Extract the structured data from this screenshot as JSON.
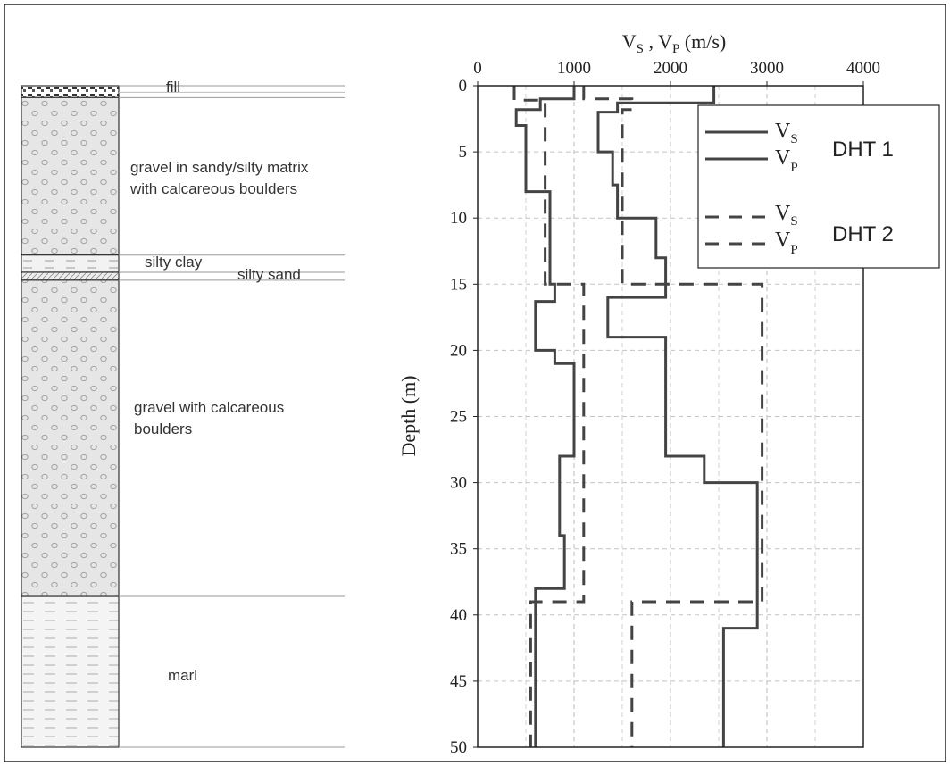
{
  "strata": {
    "labels": {
      "fill": "fill",
      "gravel1_line1": "gravel in sandy/silty matrix",
      "gravel1_line2": "with calcareous boulders",
      "silty_clay": "silty clay",
      "silty_sand": "silty sand",
      "gravel2_line1": "gravel with calcareous",
      "gravel2_line2": "boulders",
      "marl": "marl"
    },
    "layers": [
      {
        "name": "fill",
        "top": 0,
        "bottom": 0.9,
        "pattern": "fill"
      },
      {
        "name": "gravel-sandy-silty",
        "top": 0.9,
        "bottom": 12.8,
        "pattern": "gravel"
      },
      {
        "name": "silty-clay",
        "top": 12.8,
        "bottom": 14.1,
        "pattern": "clay"
      },
      {
        "name": "silty-sand",
        "top": 14.1,
        "bottom": 14.7,
        "pattern": "sand"
      },
      {
        "name": "gravel-calcareous",
        "top": 14.7,
        "bottom": 38.6,
        "pattern": "gravel"
      },
      {
        "name": "marl",
        "top": 38.6,
        "bottom": 50,
        "pattern": "marl"
      }
    ]
  },
  "chart_data": {
    "type": "line",
    "title": "",
    "x_title_main": "V",
    "x_title_sub1": "S",
    "x_title_sep": " , V",
    "x_title_sub2": "P",
    "x_title_unit": " (m/s)",
    "ylabel": "Depth (m)",
    "xlim": [
      0,
      4000
    ],
    "ylim": [
      0,
      50
    ],
    "y_inverted": true,
    "x_axis_position": "top",
    "xticks": [
      0,
      1000,
      2000,
      3000,
      4000
    ],
    "yticks": [
      0,
      5,
      10,
      15,
      20,
      25,
      30,
      35,
      40,
      45,
      50
    ],
    "grid": true,
    "legend": {
      "position": "top-right",
      "v": "V",
      "s": "S",
      "p": "P",
      "group1": "DHT 1",
      "group2": "DHT 2"
    },
    "series": [
      {
        "group": "DHT 1",
        "wave": "S",
        "style": "solid",
        "color": "#444444",
        "points": [
          [
            1000,
            0
          ],
          [
            1000,
            1
          ],
          [
            650,
            1
          ],
          [
            650,
            1.8
          ],
          [
            400,
            1.8
          ],
          [
            400,
            3
          ],
          [
            500,
            3
          ],
          [
            500,
            8
          ],
          [
            750,
            8
          ],
          [
            750,
            15
          ],
          [
            800,
            15
          ],
          [
            800,
            16.3
          ],
          [
            600,
            16.3
          ],
          [
            600,
            20
          ],
          [
            800,
            20
          ],
          [
            800,
            21
          ],
          [
            1000,
            21
          ],
          [
            1000,
            28
          ],
          [
            850,
            28
          ],
          [
            850,
            34
          ],
          [
            900,
            34
          ],
          [
            900,
            38
          ],
          [
            600,
            38
          ],
          [
            600,
            50
          ]
        ]
      },
      {
        "group": "DHT 1",
        "wave": "P",
        "style": "solid",
        "color": "#444444",
        "points": [
          [
            2450,
            0
          ],
          [
            2450,
            1.3
          ],
          [
            1450,
            1.3
          ],
          [
            1450,
            2
          ],
          [
            1250,
            2
          ],
          [
            1250,
            5
          ],
          [
            1400,
            5
          ],
          [
            1400,
            7.5
          ],
          [
            1450,
            7.5
          ],
          [
            1450,
            10
          ],
          [
            1850,
            10
          ],
          [
            1850,
            13
          ],
          [
            1950,
            13
          ],
          [
            1950,
            16
          ],
          [
            1350,
            16
          ],
          [
            1350,
            19
          ],
          [
            1950,
            19
          ],
          [
            1950,
            28
          ],
          [
            2350,
            28
          ],
          [
            2350,
            30
          ],
          [
            2900,
            30
          ],
          [
            2900,
            41
          ],
          [
            2550,
            41
          ],
          [
            2550,
            50
          ]
        ]
      },
      {
        "group": "DHT 2",
        "wave": "S",
        "style": "dashed",
        "color": "#444444",
        "points": [
          [
            380,
            0
          ],
          [
            380,
            1.1
          ],
          [
            700,
            1.1
          ],
          [
            700,
            15
          ],
          [
            1100,
            15
          ],
          [
            1100,
            39
          ],
          [
            550,
            39
          ],
          [
            550,
            50
          ]
        ]
      },
      {
        "group": "DHT 2",
        "wave": "P",
        "style": "dashed",
        "color": "#444444",
        "points": [
          [
            1100,
            0
          ],
          [
            1100,
            1
          ],
          [
            1600,
            1
          ],
          [
            1600,
            1.8
          ],
          [
            1500,
            1.8
          ],
          [
            1500,
            15
          ],
          [
            2950,
            15
          ],
          [
            2950,
            39
          ],
          [
            1600,
            39
          ],
          [
            1600,
            50
          ]
        ]
      }
    ]
  }
}
